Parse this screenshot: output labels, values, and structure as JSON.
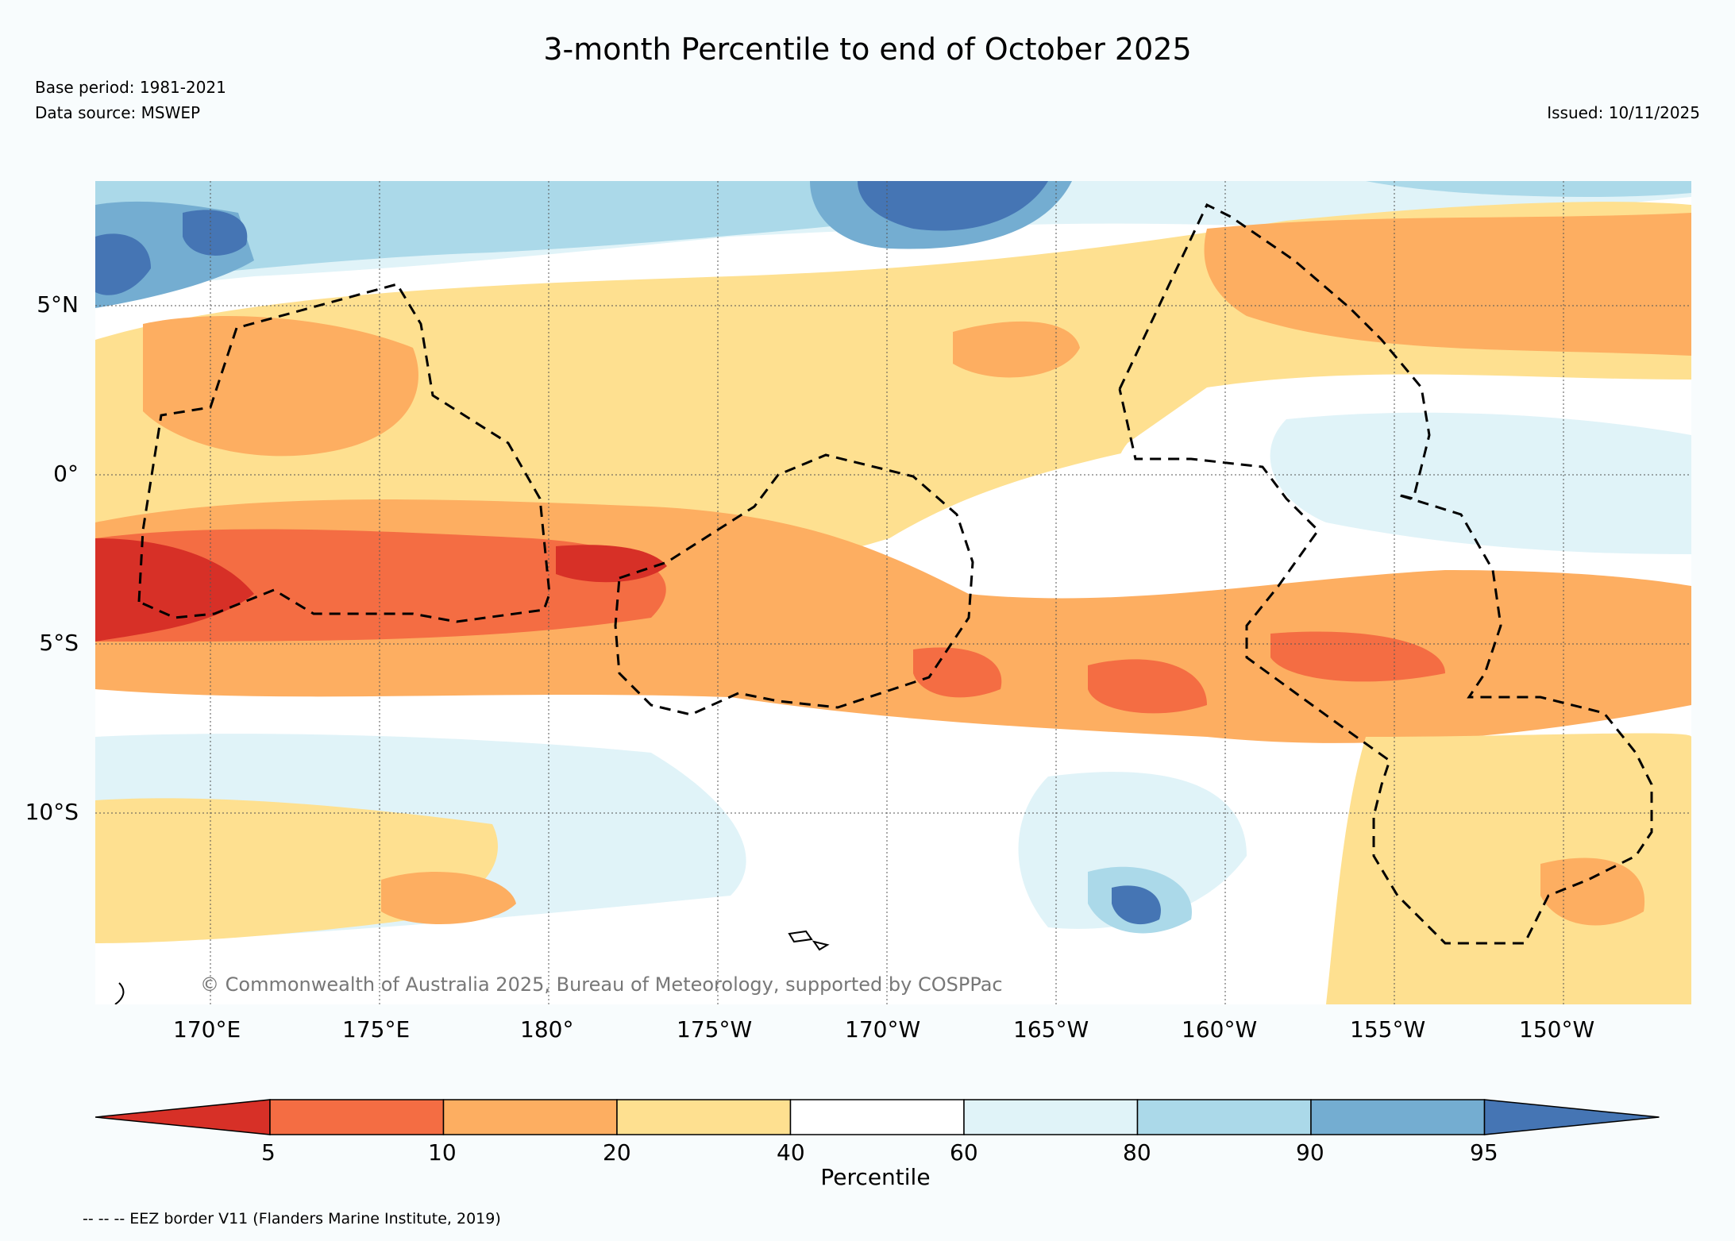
{
  "title": "3-month Percentile to end of October 2025",
  "base_period": "Base period: 1981-2021",
  "data_source": "Data source: MSWEP",
  "issued": "Issued: 10/11/2025",
  "copyright": "© Commonwealth of Australia 2025, Bureau of Meteorology, supported by COSPPac",
  "lon_labels": [
    "170°E",
    "175°E",
    "180°",
    "175°W",
    "170°W",
    "165°W",
    "160°W",
    "155°W",
    "150°W"
  ],
  "lat_labels": [
    "5°N",
    "0°",
    "5°S",
    "10°S"
  ],
  "colorbar": {
    "label": "Percentile",
    "ticks": [
      "5",
      "10",
      "20",
      "40",
      "60",
      "80",
      "90",
      "95"
    ],
    "colors": [
      "#d73027",
      "#f46d43",
      "#fdae61",
      "#fee090",
      "#ffffff",
      "#e0f3f8",
      "#abd9e9",
      "#74add1",
      "#4575b4"
    ]
  },
  "legend_text": "-- -- -- EEZ border V11 (Flanders Marine Institute, 2019)"
}
